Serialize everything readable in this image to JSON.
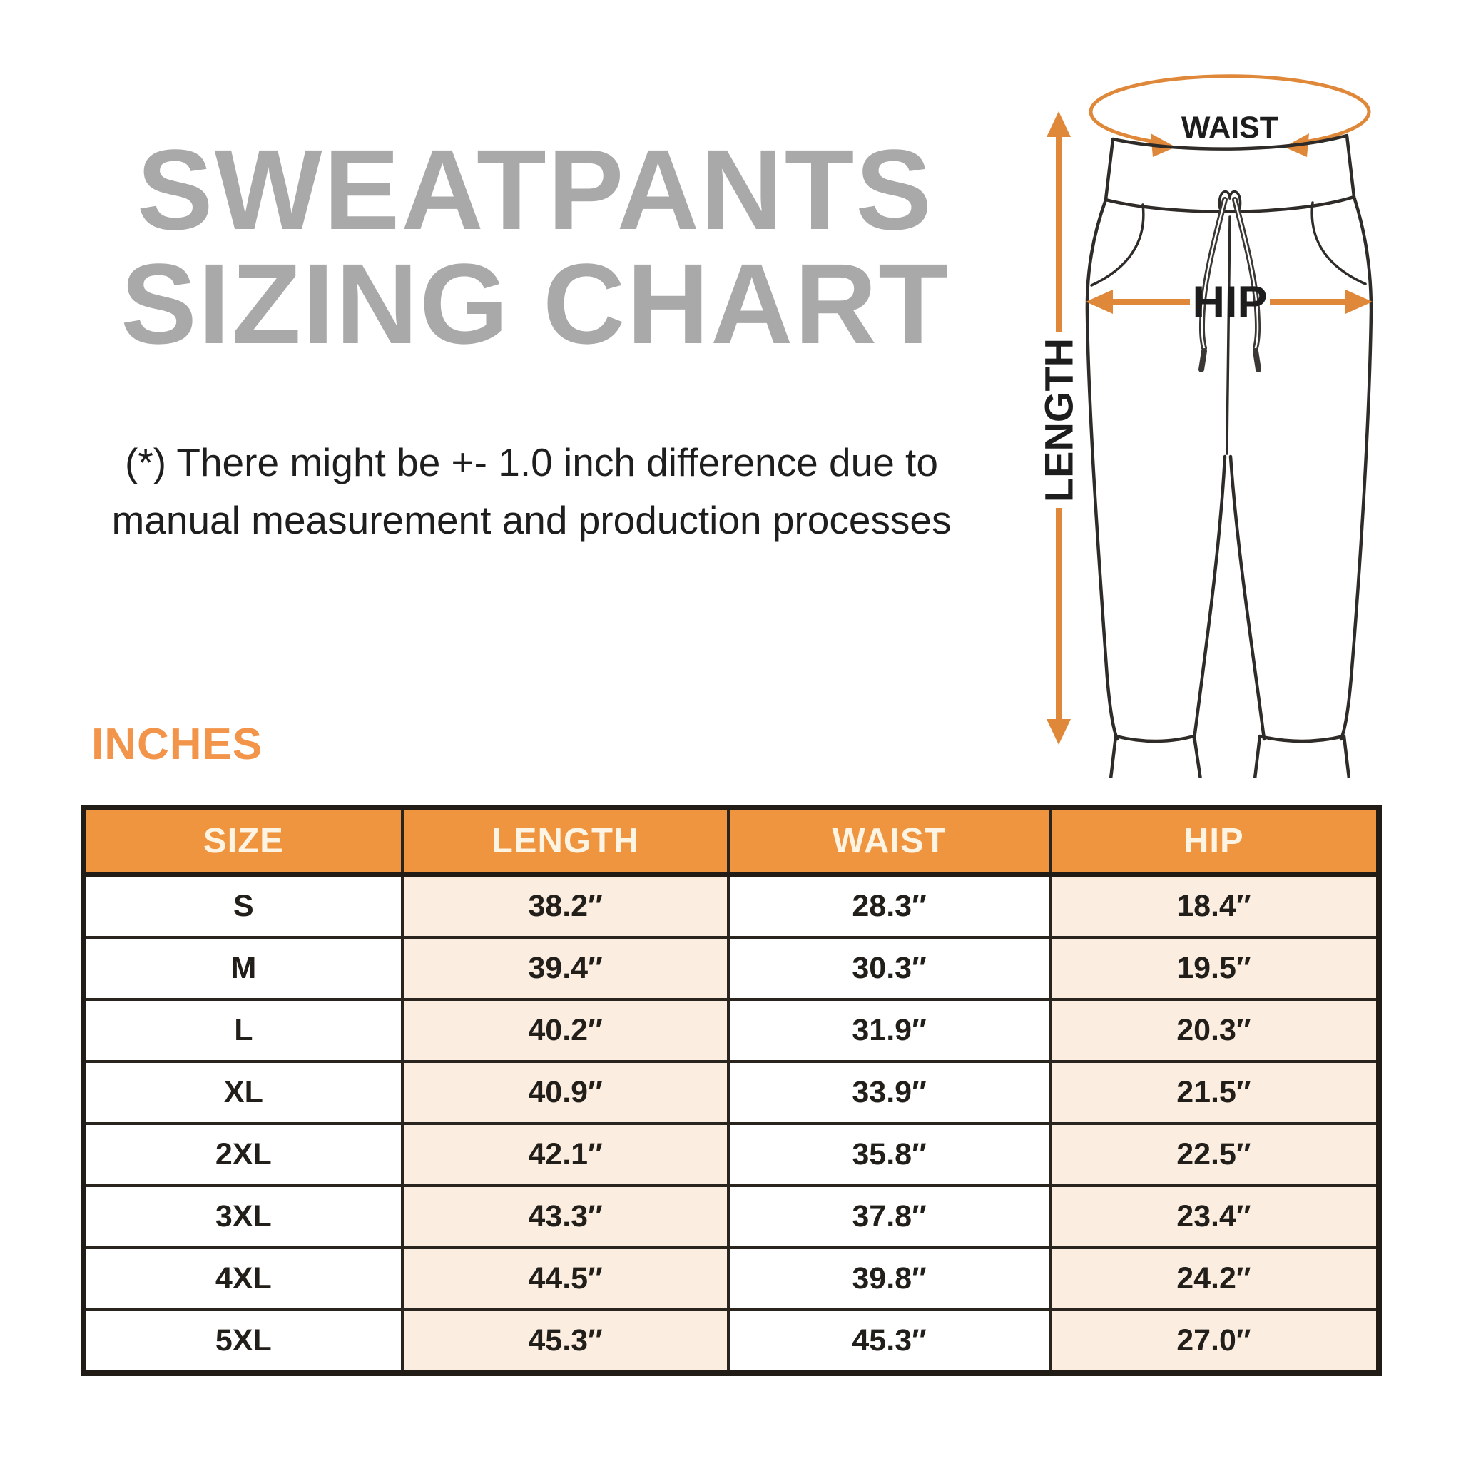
{
  "title": {
    "line1": "SWEATPANTS",
    "line2": "SIZING CHART"
  },
  "note": {
    "line1": "(*) There might be +- 1.0 inch difference due to",
    "line2": "manual measurement and production processes"
  },
  "units_label": "INCHES",
  "diagram": {
    "waist_label": "WAIST",
    "hip_label": "HIP",
    "length_label": "LENGTH"
  },
  "table": {
    "value_suffix": "″"
  },
  "chart_data": {
    "type": "table",
    "title": "SWEATPANTS SIZING CHART",
    "units": "inches",
    "columns": [
      "SIZE",
      "LENGTH",
      "WAIST",
      "HIP"
    ],
    "rows": [
      [
        "S",
        38.2,
        28.3,
        18.4
      ],
      [
        "M",
        39.4,
        30.3,
        19.5
      ],
      [
        "L",
        40.2,
        31.9,
        20.3
      ],
      [
        "XL",
        40.9,
        33.9,
        21.5
      ],
      [
        "2XL",
        42.1,
        35.8,
        22.5
      ],
      [
        "3XL",
        43.3,
        37.8,
        23.4
      ],
      [
        "4XL",
        44.5,
        39.8,
        24.2
      ],
      [
        "5XL",
        45.3,
        45.3,
        27.0
      ]
    ]
  },
  "colors": {
    "title_gray": "#A9A9A9",
    "accent_orange": "#F0953F",
    "inches_orange": "#F2944A",
    "arrow_orange": "#E0883A",
    "cell_peach": "#FBEEE1",
    "border_dark": "#221C16",
    "header_text": "#FDF4E3"
  }
}
